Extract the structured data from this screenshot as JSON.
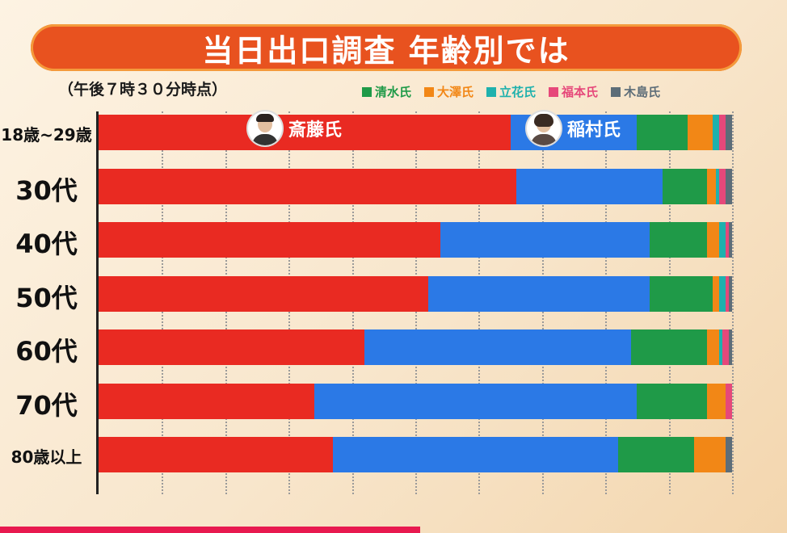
{
  "header": {
    "title": "当日出口調査 年齢別では",
    "subtitle": "（午後７時３０分時点）"
  },
  "colors": {
    "saito": "#e92a22",
    "inamura": "#2b79e6",
    "shimizu": "#1f9a48",
    "osawa": "#f28716",
    "tachibana": "#1fb1ad",
    "fukumoto": "#e6487a",
    "kijima": "#5d6d78"
  },
  "candidate_labels": {
    "saito": "斎藤氏",
    "inamura": "稲村氏"
  },
  "chart_data": {
    "type": "bar",
    "orientation": "horizontal",
    "stacked": true,
    "title": "当日出口調査 年齢別では",
    "subtitle": "（午後７時３０分時点）",
    "categories": [
      "18歳~29歳",
      "30代",
      "40代",
      "50代",
      "60代",
      "70代",
      "80歳以上"
    ],
    "series": [
      {
        "key": "saito",
        "name": "斎藤氏",
        "values": [
          65,
          66,
          54,
          52,
          42,
          34,
          37
        ]
      },
      {
        "key": "inamura",
        "name": "稲村氏",
        "values": [
          20,
          23,
          33,
          35,
          42,
          51,
          45
        ]
      },
      {
        "key": "shimizu",
        "name": "清水氏",
        "values": [
          8,
          7,
          9,
          10,
          12,
          11,
          12
        ]
      },
      {
        "key": "osawa",
        "name": "大澤氏",
        "values": [
          4,
          1.5,
          2,
          1,
          2,
          3,
          5
        ]
      },
      {
        "key": "tachibana",
        "name": "立花氏",
        "values": [
          1,
          0.5,
          1,
          1,
          0.5,
          0,
          0
        ]
      },
      {
        "key": "fukumoto",
        "name": "福本氏",
        "values": [
          1,
          1,
          0.5,
          0.5,
          1,
          1,
          0
        ]
      },
      {
        "key": "kijima",
        "name": "木島氏",
        "values": [
          1,
          1,
          0.5,
          0.5,
          0.5,
          0,
          1
        ]
      }
    ],
    "xlim": [
      0,
      100
    ],
    "x_gridlines": [
      10,
      20,
      30,
      40,
      50,
      60,
      70,
      80,
      90,
      100
    ],
    "legend": [
      "清水氏",
      "大澤氏",
      "立花氏",
      "福本氏",
      "木島氏"
    ],
    "legend_position": "top-right",
    "grid": true
  }
}
